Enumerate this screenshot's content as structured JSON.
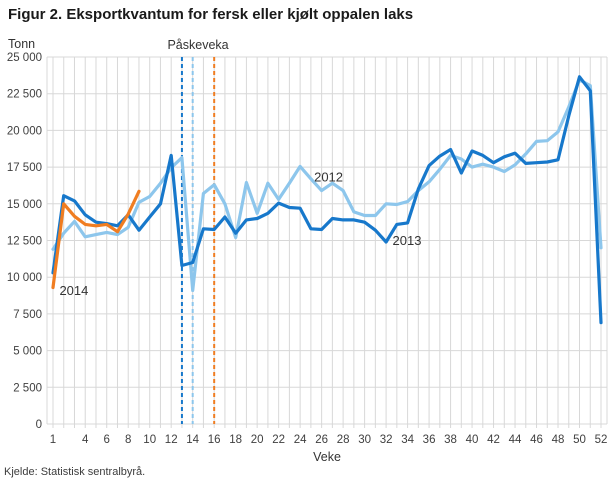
{
  "title": "Figur 2. Eksportkvantum for fersk eller kjølt oppalen laks",
  "source": "Kjelde: Statistisk sentralbyrå.",
  "colors": {
    "series_2012": "#8dc6ec",
    "series_2013": "#1778cb",
    "series_2014": "#f07d21",
    "grid": "#d8d8d8",
    "axis_text": "#404040",
    "label_text": "#333333"
  },
  "chart_data": {
    "type": "line",
    "title": "Figur 2. Eksportkvantum for fersk eller kjølt oppalen laks",
    "xlabel": "Veke",
    "ylabel": "Tonn",
    "x_range": [
      1,
      52
    ],
    "ylim": [
      0,
      25000
    ],
    "grid": true,
    "yticks": [
      0,
      2500,
      5000,
      7500,
      10000,
      12500,
      15000,
      17500,
      20000,
      22500,
      25000
    ],
    "ytick_labels": [
      "0",
      "2 500",
      "5 000",
      "7 500",
      "10 000",
      "12 500",
      "15 000",
      "17 500",
      "20 000",
      "22 500",
      "25 000"
    ],
    "xticks": [
      1,
      4,
      6,
      8,
      10,
      12,
      14,
      16,
      18,
      20,
      22,
      24,
      26,
      28,
      30,
      32,
      34,
      36,
      38,
      40,
      42,
      44,
      46,
      48,
      50,
      52
    ],
    "annotation": {
      "label": "Påskeveka",
      "lines": [
        {
          "week": 13,
          "year": "2013",
          "color": "#1778cb"
        },
        {
          "week": 14,
          "year": "2012",
          "color": "#8dc6ec"
        },
        {
          "week": 16,
          "year": "2014",
          "color": "#f07d21"
        }
      ]
    },
    "series": [
      {
        "name": "2012",
        "color": "#8dc6ec",
        "label": {
          "text": "2012",
          "week": 25.3,
          "value": 16800,
          "anchor": "start"
        },
        "start_week": 1,
        "values": [
          11900,
          13000,
          13800,
          12750,
          12900,
          13050,
          12900,
          13400,
          15100,
          15500,
          16400,
          17450,
          18150,
          9100,
          15700,
          16300,
          15000,
          12700,
          16450,
          14350,
          16400,
          15300,
          16400,
          17550,
          16700,
          15900,
          16400,
          15900,
          14450,
          14200,
          14200,
          15000,
          14950,
          15150,
          15900,
          16500,
          17350,
          18300,
          18050,
          17500,
          17700,
          17500,
          17200,
          17650,
          18400,
          19250,
          19300,
          19900,
          21600,
          23450,
          23050,
          12000
        ]
      },
      {
        "name": "2013",
        "color": "#1778cb",
        "label": {
          "text": "2013",
          "week": 32.6,
          "value": 12450,
          "anchor": "start"
        },
        "start_week": 1,
        "values": [
          10300,
          15550,
          15200,
          14250,
          13750,
          13650,
          13500,
          14250,
          13200,
          14100,
          15000,
          18300,
          10800,
          11000,
          13300,
          13250,
          14100,
          13000,
          13900,
          14000,
          14350,
          15050,
          14750,
          14700,
          13300,
          13250,
          14000,
          13900,
          13900,
          13750,
          13200,
          12400,
          13600,
          13700,
          16000,
          17600,
          18250,
          18700,
          17100,
          18600,
          18300,
          17800,
          18200,
          18450,
          17750,
          17800,
          17850,
          18000,
          21000,
          23650,
          22700,
          6900
        ]
      },
      {
        "name": "2014",
        "color": "#f07d21",
        "label": {
          "text": "2014",
          "week": 1.6,
          "value": 9050,
          "anchor": "start"
        },
        "start_week": 1,
        "values": [
          9300,
          15000,
          14150,
          13600,
          13500,
          13600,
          13100,
          14300,
          15850
        ]
      }
    ]
  }
}
